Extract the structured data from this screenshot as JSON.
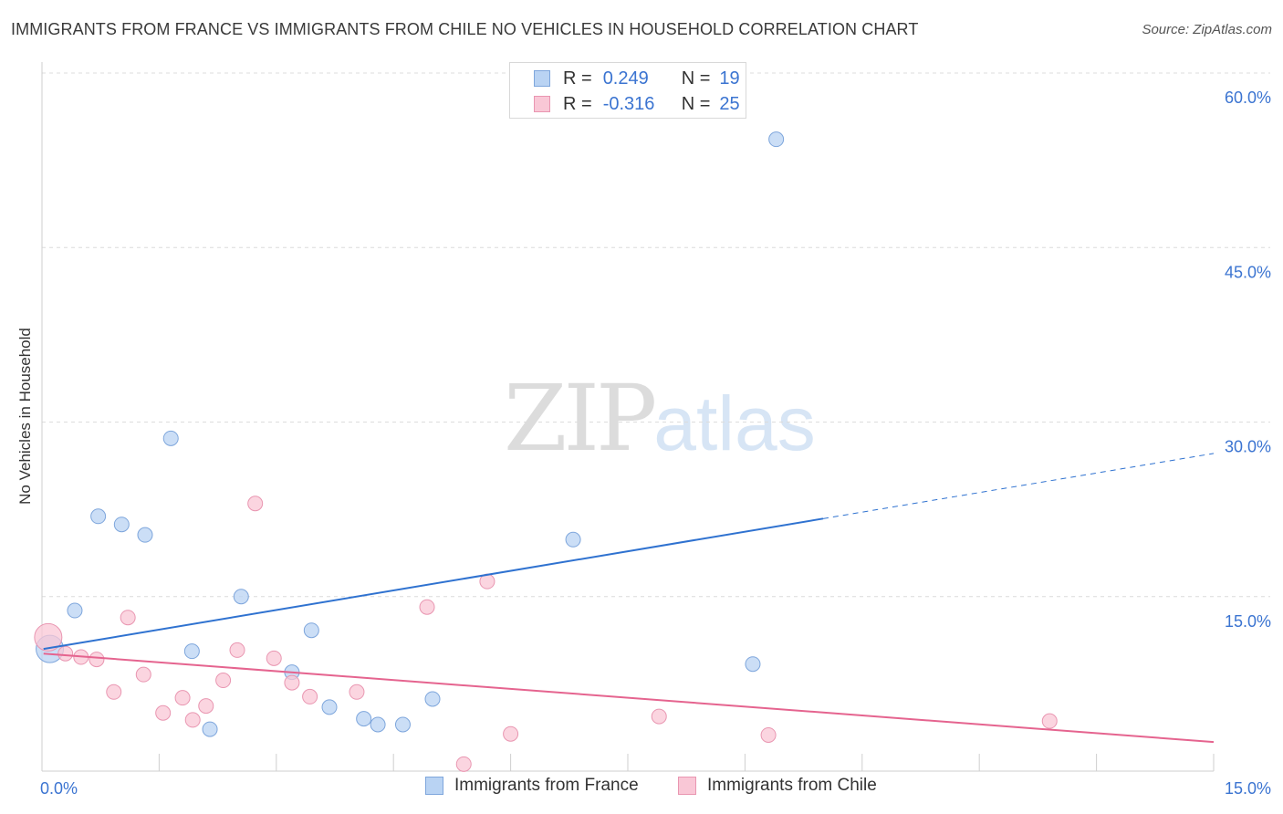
{
  "title": "IMMIGRANTS FROM FRANCE VS IMMIGRANTS FROM CHILE NO VEHICLES IN HOUSEHOLD CORRELATION CHART",
  "source": "Source: ZipAtlas.com",
  "watermark": {
    "zip": "ZIP",
    "atlas": "atlas"
  },
  "legend": {
    "rows": [
      {
        "r_label": "R =",
        "r_value": "0.249",
        "n_label": "N =",
        "n_value": "19"
      },
      {
        "r_label": "R =",
        "r_value": "-0.316",
        "n_label": "N =",
        "n_value": "25"
      }
    ]
  },
  "bottom_legend": {
    "france": "Immigrants from France",
    "chile": "Immigrants from Chile"
  },
  "colors": {
    "france_fill": "#b9d3f3",
    "france_stroke": "#7ea6dc",
    "france_line": "#2f72d0",
    "chile_fill": "#f9c7d6",
    "chile_stroke": "#e996b1",
    "chile_line": "#e5648f",
    "tick_text": "#3b74d1",
    "grid": "#dcdcdc"
  },
  "chart_data": {
    "type": "scatter",
    "title": "IMMIGRANTS FROM FRANCE VS IMMIGRANTS FROM CHILE NO VEHICLES IN HOUSEHOLD CORRELATION CHART",
    "xlabel": "",
    "ylabel": "No Vehicles in Household",
    "xlim": [
      0,
      15
    ],
    "ylim": [
      0,
      60
    ],
    "x_tick_labels": [
      "0.0%",
      "15.0%"
    ],
    "y_ticks": [
      15,
      30,
      45,
      60
    ],
    "y_tick_labels": [
      "15.0%",
      "30.0%",
      "45.0%",
      "60.0%"
    ],
    "series": [
      {
        "name": "Immigrants from France",
        "points": [
          {
            "x": 0.1,
            "y": 10.5,
            "size": "large"
          },
          {
            "x": 0.42,
            "y": 13.8
          },
          {
            "x": 0.72,
            "y": 21.9
          },
          {
            "x": 1.02,
            "y": 21.2
          },
          {
            "x": 1.32,
            "y": 20.3
          },
          {
            "x": 1.65,
            "y": 28.6
          },
          {
            "x": 1.92,
            "y": 10.3
          },
          {
            "x": 2.15,
            "y": 3.6
          },
          {
            "x": 2.55,
            "y": 15.0
          },
          {
            "x": 3.2,
            "y": 8.5
          },
          {
            "x": 3.45,
            "y": 12.1
          },
          {
            "x": 3.68,
            "y": 5.5
          },
          {
            "x": 4.12,
            "y": 4.5
          },
          {
            "x": 4.3,
            "y": 4.0
          },
          {
            "x": 4.62,
            "y": 4.0
          },
          {
            "x": 5.0,
            "y": 6.2
          },
          {
            "x": 6.8,
            "y": 19.9
          },
          {
            "x": 9.1,
            "y": 9.2
          },
          {
            "x": 9.4,
            "y": 54.3
          }
        ],
        "trend": {
          "x0": 0.02,
          "y0": 10.5,
          "x1": 10.0,
          "y1": 21.7,
          "dashed_to_x": 15.0,
          "dashed_to_y": 27.3
        }
      },
      {
        "name": "Immigrants from Chile",
        "points": [
          {
            "x": 0.08,
            "y": 11.5,
            "size": "large"
          },
          {
            "x": 0.3,
            "y": 10.1
          },
          {
            "x": 0.5,
            "y": 9.8
          },
          {
            "x": 0.7,
            "y": 9.6
          },
          {
            "x": 0.92,
            "y": 6.8
          },
          {
            "x": 1.1,
            "y": 13.2
          },
          {
            "x": 1.3,
            "y": 8.3
          },
          {
            "x": 1.55,
            "y": 5.0
          },
          {
            "x": 1.8,
            "y": 6.3
          },
          {
            "x": 1.93,
            "y": 4.4
          },
          {
            "x": 2.1,
            "y": 5.6
          },
          {
            "x": 2.32,
            "y": 7.8
          },
          {
            "x": 2.5,
            "y": 10.4
          },
          {
            "x": 2.73,
            "y": 23.0
          },
          {
            "x": 2.97,
            "y": 9.7
          },
          {
            "x": 3.2,
            "y": 7.6
          },
          {
            "x": 3.43,
            "y": 6.4
          },
          {
            "x": 4.03,
            "y": 6.8
          },
          {
            "x": 4.93,
            "y": 14.1
          },
          {
            "x": 5.7,
            "y": 16.3
          },
          {
            "x": 6.0,
            "y": 3.2
          },
          {
            "x": 5.4,
            "y": 0.6
          },
          {
            "x": 7.9,
            "y": 4.7
          },
          {
            "x": 9.3,
            "y": 3.1
          },
          {
            "x": 12.9,
            "y": 4.3
          }
        ],
        "trend": {
          "x0": 0.02,
          "y0": 10.1,
          "x1": 15.0,
          "y1": 2.5
        }
      }
    ]
  }
}
